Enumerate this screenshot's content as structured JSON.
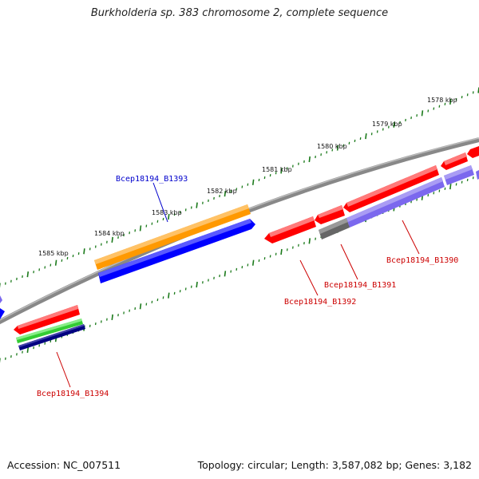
{
  "title": "Burkholderia sp. 383 chromosome 2, complete sequence",
  "footer": {
    "accession": "Accession: NC_007511",
    "summary": "Topology: circular; Length: 3,587,082 bp; Genes: 3,182"
  },
  "colors": {
    "backbone": "#888888",
    "tick": "#1b7a1b",
    "tick_text": "#111111",
    "label_reverse": "#cc0000",
    "label_forward": "#0000cc",
    "cds": "#ff0000",
    "orf": "#ff9900",
    "blast_forward": "#0000ff",
    "blast_reverse": "#7b68ee",
    "gc": "#33cc33",
    "dark_blast": "#000080",
    "gray_feature": "#666666"
  },
  "ticks": [
    "1578 kbp",
    "1579 kbp",
    "1580 kbp",
    "1581 kbp",
    "1582 kbp",
    "1583 kbp",
    "1584 kbp",
    "1585 kbp"
  ],
  "genes": [
    {
      "label": "Bcep18194_B1390",
      "strand": "reverse"
    },
    {
      "label": "Bcep18194_B1391",
      "strand": "reverse"
    },
    {
      "label": "Bcep18194_B1392",
      "strand": "reverse"
    },
    {
      "label": "Bcep18194_B1393",
      "strand": "forward"
    },
    {
      "label": "Bcep18194_B1394",
      "strand": "reverse"
    }
  ]
}
